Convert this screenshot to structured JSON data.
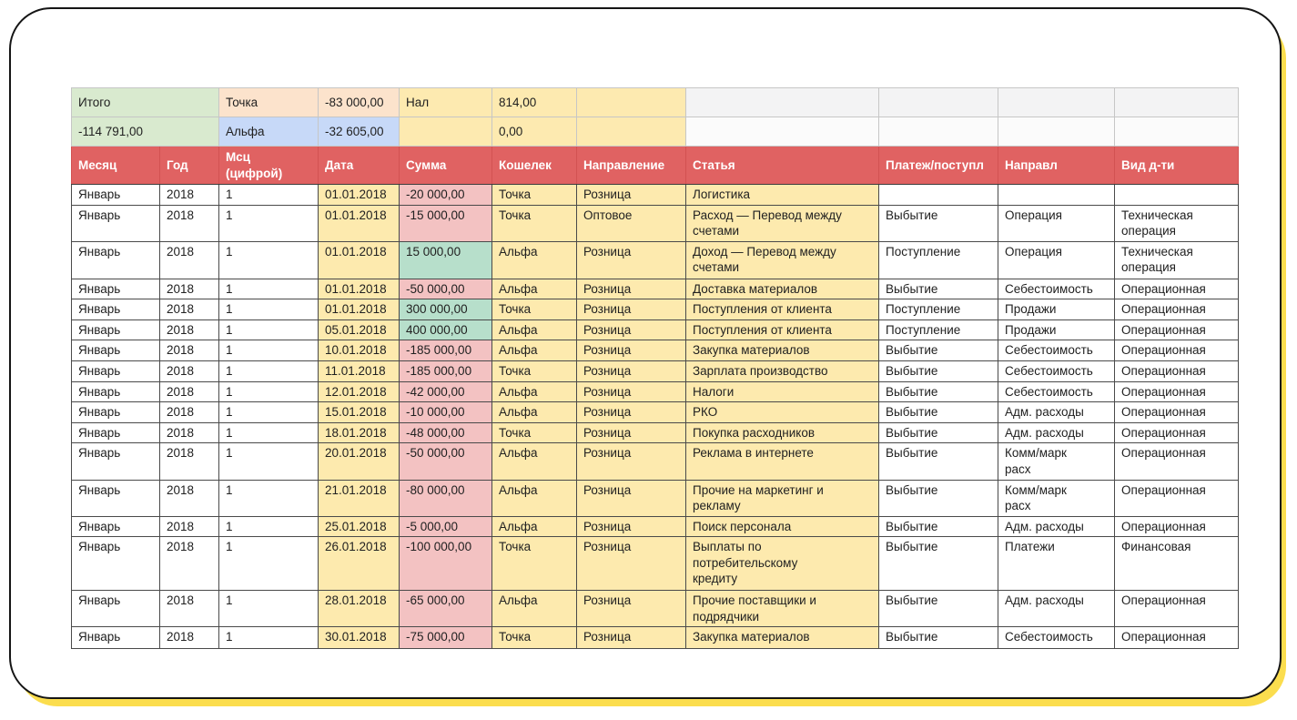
{
  "summary": {
    "rows": [
      {
        "total": "Итого",
        "wallet_name": "Точка",
        "wallet_value": "-83 000,00",
        "cash_label": "Нал",
        "cash_value": "814,00",
        "extra": ""
      },
      {
        "total": "-114 791,00",
        "wallet_name": "Альфа",
        "wallet_value": "-32 605,00",
        "cash_label": "",
        "cash_value": "0,00",
        "extra": ""
      }
    ]
  },
  "table": {
    "columns": [
      "Месяц",
      "Год",
      "Мсц\n(цифрой)",
      "Дата",
      "Сумма",
      "Кошелек",
      "Направление",
      "Статья",
      "Платеж/поступл",
      "Направл",
      "Вид д-ти"
    ],
    "rows": [
      {
        "month": "Январь",
        "year": "2018",
        "msc": "1",
        "date": "01.01.2018",
        "sum": "-20 000,00",
        "wallet": "Точка",
        "direction": "Розница",
        "article": "Логистика",
        "payment": "",
        "napravl": "",
        "activity": ""
      },
      {
        "month": "Январь",
        "year": "2018",
        "msc": "1",
        "date": "01.01.2018",
        "sum": "-15 000,00",
        "wallet": "Точка",
        "direction": "Оптовое",
        "article": "Расход — Перевод между\nсчетами",
        "payment": "Выбытие",
        "napravl": "Операция",
        "activity": "Техническая\nоперация"
      },
      {
        "month": "Январь",
        "year": "2018",
        "msc": "1",
        "date": "01.01.2018",
        "sum": "15 000,00",
        "wallet": "Альфа",
        "direction": "Розница",
        "article": "Доход — Перевод между\nсчетами",
        "payment": "Поступление",
        "napravl": "Операция",
        "activity": "Техническая\nоперация"
      },
      {
        "month": "Январь",
        "year": "2018",
        "msc": "1",
        "date": "01.01.2018",
        "sum": "-50 000,00",
        "wallet": "Альфа",
        "direction": "Розница",
        "article": "Доставка материалов",
        "payment": "Выбытие",
        "napravl": "Себестоимость",
        "activity": "Операционная"
      },
      {
        "month": "Январь",
        "year": "2018",
        "msc": "1",
        "date": "01.01.2018",
        "sum": "300 000,00",
        "wallet": "Точка",
        "direction": "Розница",
        "article": "Поступления от клиента",
        "payment": "Поступление",
        "napravl": "Продажи",
        "activity": "Операционная"
      },
      {
        "month": "Январь",
        "year": "2018",
        "msc": "1",
        "date": "05.01.2018",
        "sum": "400 000,00",
        "wallet": "Альфа",
        "direction": "Розница",
        "article": "Поступления от клиента",
        "payment": "Поступление",
        "napravl": "Продажи",
        "activity": "Операционная"
      },
      {
        "month": "Январь",
        "year": "2018",
        "msc": "1",
        "date": "10.01.2018",
        "sum": "-185 000,00",
        "wallet": "Альфа",
        "direction": "Розница",
        "article": "Закупка материалов",
        "payment": "Выбытие",
        "napravl": "Себестоимость",
        "activity": "Операционная"
      },
      {
        "month": "Январь",
        "year": "2018",
        "msc": "1",
        "date": "11.01.2018",
        "sum": "-185 000,00",
        "wallet": "Точка",
        "direction": "Розница",
        "article": "Зарплата производство",
        "payment": "Выбытие",
        "napravl": "Себестоимость",
        "activity": "Операционная"
      },
      {
        "month": "Январь",
        "year": "2018",
        "msc": "1",
        "date": "12.01.2018",
        "sum": "-42 000,00",
        "wallet": "Альфа",
        "direction": "Розница",
        "article": "Налоги",
        "payment": "Выбытие",
        "napravl": "Себестоимость",
        "activity": "Операционная"
      },
      {
        "month": "Январь",
        "year": "2018",
        "msc": "1",
        "date": "15.01.2018",
        "sum": "-10 000,00",
        "wallet": "Альфа",
        "direction": "Розница",
        "article": "РКО",
        "payment": "Выбытие",
        "napravl": "Адм. расходы",
        "activity": "Операционная"
      },
      {
        "month": "Январь",
        "year": "2018",
        "msc": "1",
        "date": "18.01.2018",
        "sum": "-48 000,00",
        "wallet": "Точка",
        "direction": "Розница",
        "article": "Покупка расходников",
        "payment": "Выбытие",
        "napravl": "Адм. расходы",
        "activity": "Операционная"
      },
      {
        "month": "Январь",
        "year": "2018",
        "msc": "1",
        "date": "20.01.2018",
        "sum": "-50 000,00",
        "wallet": "Альфа",
        "direction": "Розница",
        "article": "Реклама в интернете",
        "payment": "Выбытие",
        "napravl": "Комм/марк\nрасх",
        "activity": "Операционная"
      },
      {
        "month": "Январь",
        "year": "2018",
        "msc": "1",
        "date": "21.01.2018",
        "sum": "-80 000,00",
        "wallet": "Альфа",
        "direction": "Розница",
        "article": "Прочие на маркетинг и\nрекламу",
        "payment": "Выбытие",
        "napravl": "Комм/марк\nрасх",
        "activity": "Операционная"
      },
      {
        "month": "Январь",
        "year": "2018",
        "msc": "1",
        "date": "25.01.2018",
        "sum": "-5 000,00",
        "wallet": "Альфа",
        "direction": "Розница",
        "article": "Поиск персонала",
        "payment": "Выбытие",
        "napravl": "Адм. расходы",
        "activity": "Операционная"
      },
      {
        "month": "Январь",
        "year": "2018",
        "msc": "1",
        "date": "26.01.2018",
        "sum": "-100 000,00",
        "wallet": "Точка",
        "direction": "Розница",
        "article": "Выплаты по\nпотребительскому\nкредиту",
        "payment": "Выбытие",
        "napravl": "Платежи",
        "activity": "Финансовая"
      },
      {
        "month": "Январь",
        "year": "2018",
        "msc": "1",
        "date": "28.01.2018",
        "sum": "-65 000,00",
        "wallet": "Альфа",
        "direction": "Розница",
        "article": "Прочие поставщики и\nподрядчики",
        "payment": "Выбытие",
        "napravl": "Адм. расходы",
        "activity": "Операционная"
      },
      {
        "month": "Январь",
        "year": "2018",
        "msc": "1",
        "date": "30.01.2018",
        "sum": "-75 000,00",
        "wallet": "Точка",
        "direction": "Розница",
        "article": "Закупка материалов",
        "payment": "Выбытие",
        "napravl": "Себестоимость",
        "activity": "Операционная"
      }
    ]
  },
  "colors": {
    "header_red": "#e06262",
    "positive_green": "#b7dfcb",
    "negative_pink": "#f3c2c2",
    "cell_yellow": "#fdeaae",
    "summary_green": "#d9eacf",
    "wallet_peach": "#fce3cc",
    "wallet_blue": "#c7d9f8",
    "card_shadow_yellow": "#fbdd4e"
  }
}
